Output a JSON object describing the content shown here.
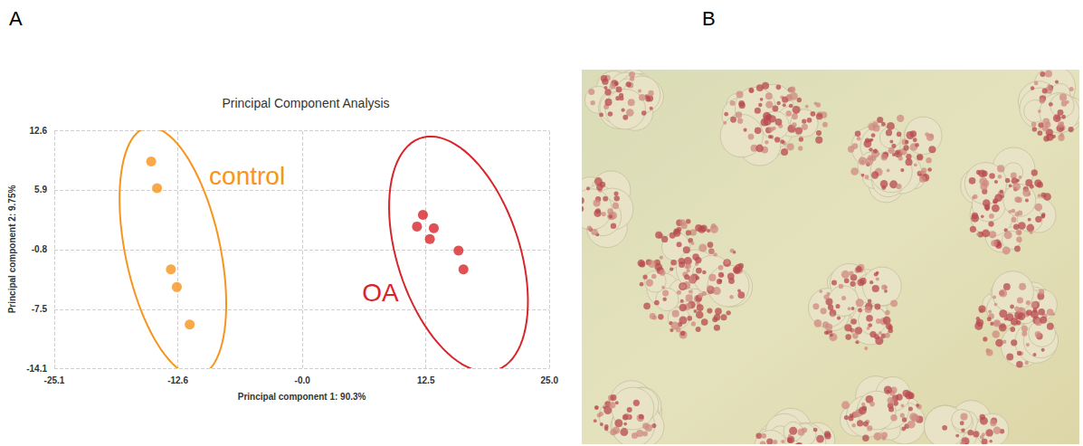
{
  "panel_labels": [
    "A",
    "B"
  ],
  "chart_data": {
    "type": "scatter",
    "title": "Principal Component Analysis",
    "x_label": "Principal component 1: 90.3%",
    "y_label": "Principal component 2: 9.75%",
    "xlim": [
      -25.1,
      25.0
    ],
    "xticks": [
      -25.1,
      -12.6,
      {
        "value": 0,
        "label": "-0.0"
      },
      12.5,
      {
        "value": 25,
        "label": "25.0"
      }
    ],
    "ylim": [
      -14.1,
      12.6
    ],
    "yticks": [
      -14.1,
      -7.5,
      -0.8,
      5.9,
      12.6
    ],
    "grid": true,
    "series": [
      {
        "name": "control",
        "color": "#f7941d",
        "marker": "circle",
        "x": [
          -15.3,
          -14.7,
          -13.3,
          -12.7,
          -11.4
        ],
        "values": [
          9.1,
          6.1,
          -3.0,
          -5.0,
          -9.2
        ],
        "ellipse": {
          "center": [
            -13.1,
            -1.0
          ],
          "radii": [
            4.8,
            14.2
          ]
        }
      },
      {
        "name": "OA",
        "color": "#d7262b",
        "marker": "circle",
        "x": [
          12.2,
          11.6,
          13.3,
          12.9,
          15.8,
          16.3
        ],
        "values": [
          3.1,
          1.8,
          1.6,
          0.4,
          -0.9,
          -3.0
        ],
        "ellipse": {
          "center": [
            15.8,
            -1.3
          ],
          "radii": [
            6.2,
            13.7
          ]
        }
      }
    ]
  }
}
